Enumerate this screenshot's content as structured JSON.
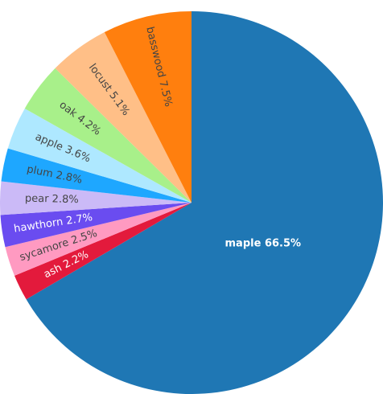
{
  "chart_data": {
    "type": "pie",
    "title": "",
    "legend": "none",
    "slices": [
      {
        "label": "maple",
        "value": 66.5,
        "text": "maple 66.5%",
        "color": "#1f77b4",
        "text_color": "#ffffff"
      },
      {
        "label": "ash",
        "value": 2.2,
        "text": "ash 2.2%",
        "color": "#e31a3c",
        "text_color": "#ffffff"
      },
      {
        "label": "sycamore",
        "value": 2.5,
        "text": "sycamore 2.5%",
        "color": "#ff9ac1",
        "text_color": "#444444"
      },
      {
        "label": "hawthorn",
        "value": 2.7,
        "text": "hawthorn 2.7%",
        "color": "#6a4cf0",
        "text_color": "#ffffff"
      },
      {
        "label": "pear",
        "value": 2.8,
        "text": "pear 2.8%",
        "color": "#cbbaf7",
        "text_color": "#444444"
      },
      {
        "label": "plum",
        "value": 2.8,
        "text": "plum 2.8%",
        "color": "#1ea7ff",
        "text_color": "#444444"
      },
      {
        "label": "apple",
        "value": 3.6,
        "text": "apple 3.6%",
        "color": "#aee8ff",
        "text_color": "#444444"
      },
      {
        "label": "oak",
        "value": 4.2,
        "text": "oak 4.2%",
        "color": "#a8f08a",
        "text_color": "#444444"
      },
      {
        "label": "locust",
        "value": 5.1,
        "text": "locust 5.1%",
        "color": "#ffbf87",
        "text_color": "#444444"
      },
      {
        "label": "basswood",
        "value": 7.5,
        "text": "basswood 7.5%",
        "color": "#ff7f0e",
        "text_color": "#444444"
      }
    ]
  }
}
